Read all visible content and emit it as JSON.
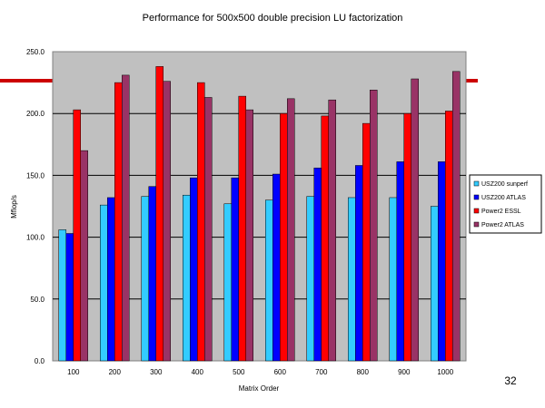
{
  "chart_data": {
    "type": "bar",
    "title": "Performance for 500x500 double precision LU factorization",
    "xlabel": "Matrix Order",
    "ylabel": "Mflop/s",
    "ylim": [
      0,
      250
    ],
    "yticks": [
      "0.0",
      "50.0",
      "100.0",
      "150.0",
      "200.0",
      "250.0"
    ],
    "categories": [
      "100",
      "200",
      "300",
      "400",
      "500",
      "600",
      "700",
      "800",
      "900",
      "1000"
    ],
    "series": [
      {
        "name": "USZ200 sunperf",
        "color": "#33CCFF",
        "values": [
          106,
          126,
          133,
          134,
          127,
          130,
          133,
          132,
          132,
          125
        ]
      },
      {
        "name": "USZ200 ATLAS",
        "color": "#0000FF",
        "values": [
          103,
          132,
          141,
          148,
          148,
          151,
          156,
          158,
          161,
          161
        ]
      },
      {
        "name": "Power2 ESSL",
        "color": "#FF0000",
        "values": [
          203,
          225,
          238,
          225,
          214,
          200,
          198,
          192,
          200,
          202
        ]
      },
      {
        "name": "Power2 ATLAS",
        "color": "#993366",
        "values": [
          170,
          231,
          226,
          213,
          203,
          212,
          211,
          219,
          228,
          234
        ]
      }
    ],
    "grid": true,
    "legend_position": "right",
    "plot_background": "#C0C0C0",
    "accent_line_color": "#CC0000"
  },
  "page_number": "32"
}
